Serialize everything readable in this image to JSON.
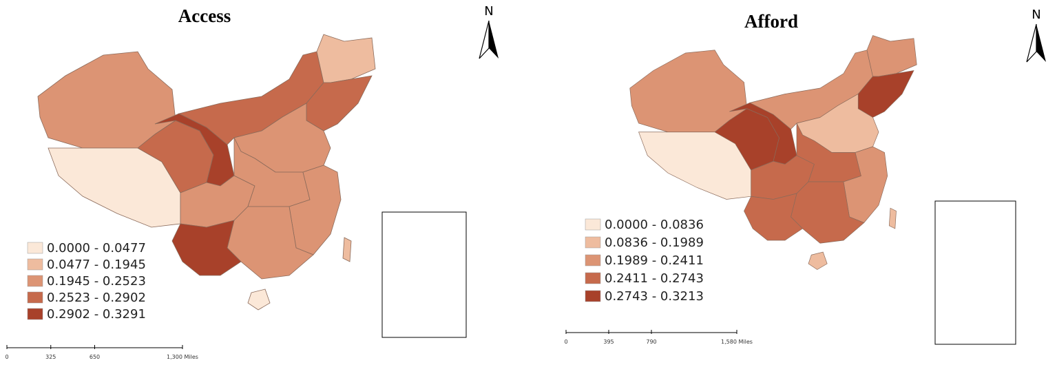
{
  "maps": [
    {
      "title": "Access",
      "legend": [
        "0.0000 - 0.0477",
        "0.0477 - 0.1945",
        "0.1945 - 0.2523",
        "0.2523 - 0.2902",
        "0.2902 - 0.3291"
      ],
      "legend_colors": [
        "#fbe8d8",
        "#eebc9f",
        "#dc9474",
        "#c66a4c",
        "#a8412a"
      ],
      "north": "N",
      "scale_bar": [
        0,
        325,
        650,
        {
          "value": 1300,
          "label": "1,300 Miles"
        }
      ]
    },
    {
      "title": "Afford",
      "legend": [
        "0.0000 - 0.0836",
        "0.0836 - 0.1989",
        "0.1989 - 0.2411",
        "0.2411 - 0.2743",
        "0.2743 - 0.3213"
      ],
      "legend_colors": [
        "#fbe8d8",
        "#eebc9f",
        "#dc9474",
        "#c66a4c",
        "#a8412a"
      ],
      "north": "N",
      "scale_bar": [
        0,
        395,
        790,
        {
          "value": 1580,
          "label": "1,580 Miles"
        }
      ]
    }
  ]
}
